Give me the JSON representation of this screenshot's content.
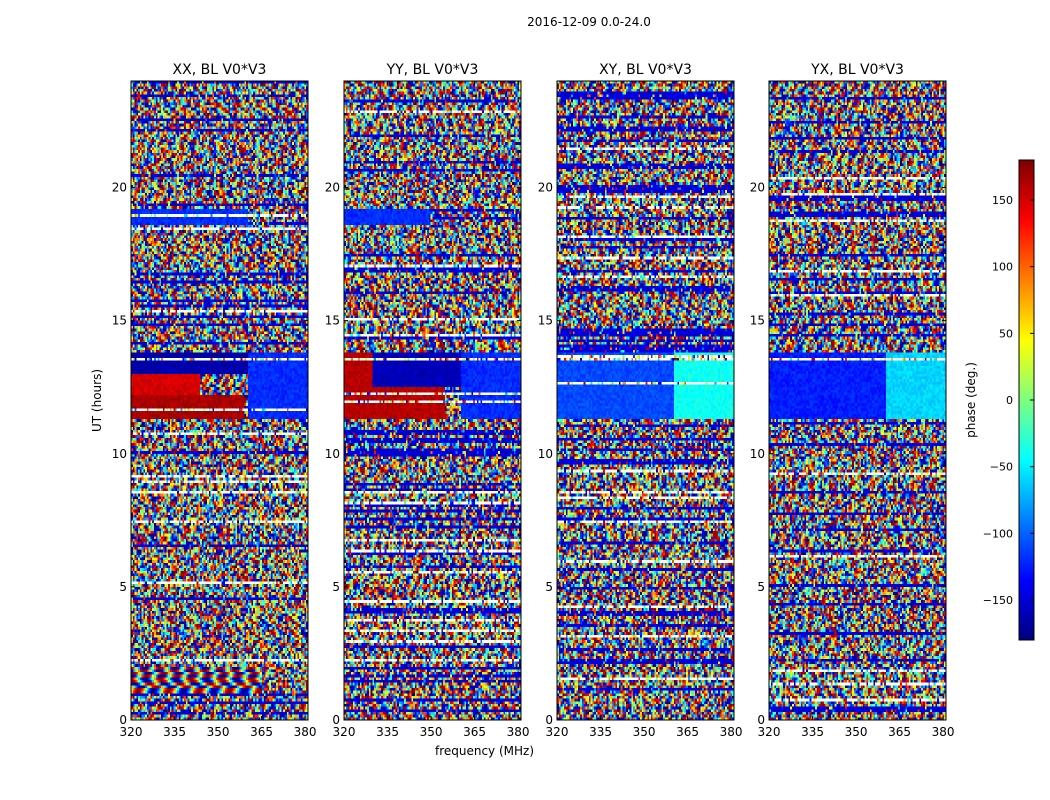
{
  "figure": {
    "suptitle": "2016-12-09 0.0-24.0"
  },
  "colorbar": {
    "label": "phase (deg.)",
    "min": -180,
    "max": 180,
    "ticks": [
      -150,
      -100,
      -50,
      0,
      50,
      100,
      150
    ],
    "tick_labels": [
      "−150",
      "−100",
      "−50",
      "0",
      "50",
      "100",
      "150"
    ],
    "colormap": [
      "#00007f",
      "#0000ff",
      "#007fff",
      "#00ffff",
      "#7fff7f",
      "#ffff00",
      "#ff7f00",
      "#ff0000",
      "#7f0000"
    ]
  },
  "chart_data": [
    {
      "type": "heatmap",
      "title": "XX, BL V0*V3",
      "xlabel": "",
      "ylabel": "UT (hours)",
      "xlim": [
        320,
        381
      ],
      "ylim": [
        0,
        24
      ],
      "xticks": [
        320,
        335,
        350,
        365,
        380
      ],
      "yticks": [
        0,
        5,
        10,
        15,
        20
      ],
      "value_range": [
        -180,
        180
      ],
      "regions": [
        {
          "t0": 11.3,
          "t1": 12.2,
          "f0": 320,
          "f1": 359,
          "phase": 165,
          "note": "coherent red band"
        },
        {
          "t0": 12.2,
          "t1": 13.0,
          "f0": 320,
          "f1": 344,
          "phase": 150
        },
        {
          "t0": 13.0,
          "t1": 13.8,
          "f0": 320,
          "f1": 360,
          "phase": -165
        },
        {
          "t0": 11.3,
          "t1": 13.8,
          "f0": 360,
          "f1": 381,
          "phase": -120
        },
        {
          "t0": 18.6,
          "t1": 19.2,
          "f0": 320,
          "f1": 360,
          "phase": -120
        },
        {
          "t0": 1.0,
          "t1": 2.0,
          "f0": 320,
          "f1": 365,
          "phase": 0,
          "note": "fringe pattern"
        }
      ]
    },
    {
      "type": "heatmap",
      "title": "YY, BL V0*V3",
      "xlabel": "frequency (MHz)",
      "ylabel": "",
      "xlim": [
        320,
        381
      ],
      "ylim": [
        0,
        24
      ],
      "xticks": [
        320,
        335,
        350,
        365,
        380
      ],
      "yticks": [
        0,
        5,
        10,
        15,
        20
      ],
      "value_range": [
        -180,
        180
      ],
      "regions": [
        {
          "t0": 11.3,
          "t1": 13.8,
          "f0": 320,
          "f1": 355,
          "phase": 160,
          "note": "red band tapering with frequency"
        },
        {
          "t0": 12.5,
          "t1": 13.8,
          "f0": 330,
          "f1": 360,
          "phase": -160
        },
        {
          "t0": 11.3,
          "t1": 13.8,
          "f0": 360,
          "f1": 381,
          "phase": -120
        },
        {
          "t0": 18.6,
          "t1": 19.2,
          "f0": 320,
          "f1": 350,
          "phase": -120
        }
      ]
    },
    {
      "type": "heatmap",
      "title": "XY, BL V0*V3",
      "xlabel": "",
      "ylabel": "",
      "xlim": [
        320,
        381
      ],
      "ylim": [
        0,
        24
      ],
      "xticks": [
        320,
        335,
        350,
        365,
        380
      ],
      "yticks": [
        0,
        5,
        10,
        15,
        20
      ],
      "value_range": [
        -180,
        180
      ],
      "regions": [
        {
          "t0": 11.3,
          "t1": 13.8,
          "f0": 320,
          "f1": 360,
          "phase": -110,
          "note": "blue to cyan gradient"
        },
        {
          "t0": 11.3,
          "t1": 13.8,
          "f0": 360,
          "f1": 381,
          "phase": -40
        }
      ]
    },
    {
      "type": "heatmap",
      "title": "YX, BL V0*V3",
      "xlabel": "",
      "ylabel": "",
      "xlim": [
        320,
        381
      ],
      "ylim": [
        0,
        24
      ],
      "xticks": [
        320,
        335,
        350,
        365,
        380
      ],
      "yticks": [
        0,
        5,
        10,
        15,
        20
      ],
      "value_range": [
        -180,
        180
      ],
      "regions": [
        {
          "t0": 11.3,
          "t1": 13.8,
          "f0": 320,
          "f1": 360,
          "phase": -125,
          "note": "blue band"
        },
        {
          "t0": 11.3,
          "t1": 13.8,
          "f0": 360,
          "f1": 381,
          "phase": -60
        }
      ]
    }
  ]
}
